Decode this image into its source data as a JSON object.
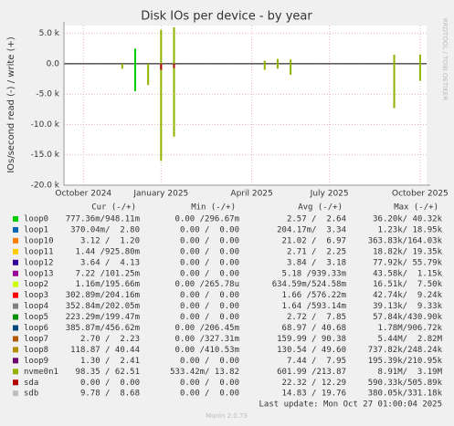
{
  "chart_data": {
    "type": "bar",
    "title": "Disk IOs per device - by year",
    "y_label": "IOs/second read (-) / write (+)",
    "side_label": "RRDTOOL / TOBI OETIKER",
    "ylim": [
      -20000,
      6300
    ],
    "yticks": [
      {
        "value": 5000,
        "label": "5.0 k"
      },
      {
        "value": 0,
        "label": "0.0"
      },
      {
        "value": -5000,
        "label": "-5.0 k"
      },
      {
        "value": -10000,
        "label": "-10.0 k"
      },
      {
        "value": -15000,
        "label": "-15.0 k"
      },
      {
        "value": -20000,
        "label": "-20.0 k"
      }
    ],
    "grid": true,
    "categories": [
      null,
      "October 2024",
      null,
      null,
      null,
      null,
      null,
      "January 2025",
      null,
      null,
      null,
      null,
      null,
      null,
      "April 2025",
      null,
      null,
      null,
      null,
      null,
      "July 2025",
      null,
      null,
      null,
      null,
      null,
      null,
      "October 2025"
    ],
    "stat_headers": [
      "Cur (-/+)",
      "Min (-/+)",
      "Avg (-/+)",
      "Max (-/+)"
    ],
    "series": [
      {
        "name": "loop0",
        "color": "#00cc00",
        "stats": [
          "777.36m/948.11m",
          "0.00 /296.67m",
          "2.57 /  2.64",
          "36.20k/ 40.32k"
        ],
        "values": [
          0,
          0,
          0,
          0,
          0,
          2500,
          0,
          0,
          0,
          0,
          0,
          0,
          0,
          0,
          0,
          0,
          0,
          0,
          0,
          0,
          0,
          0,
          0,
          0,
          0,
          0,
          0,
          0
        ],
        "read": [
          0,
          0,
          0,
          0,
          0,
          -4500,
          0,
          0,
          0,
          0,
          0,
          0,
          0,
          0,
          0,
          0,
          0,
          0,
          0,
          0,
          0,
          0,
          0,
          0,
          0,
          0,
          0,
          0
        ]
      },
      {
        "name": "loop1",
        "color": "#0066b3",
        "stats": [
          "370.04m/  2.80",
          "0.00 /  0.00",
          "204.17m/  3.34",
          "1.23k/ 18.95k"
        ]
      },
      {
        "name": "loop10",
        "color": "#ff8000",
        "stats": [
          "3.12 /  1.20",
          "0.00 /  0.00",
          "21.02 /  6.97",
          "363.83k/164.03k"
        ]
      },
      {
        "name": "loop11",
        "color": "#ffcc00",
        "stats": [
          "1.44 /925.80m",
          "0.00 /  0.00",
          "2.71 /  2.25",
          "18.82k/ 19.35k"
        ]
      },
      {
        "name": "loop12",
        "color": "#330099",
        "stats": [
          "3.64 /  4.13",
          "0.00 /  0.00",
          "3.84 /  3.18",
          "77.92k/ 55.79k"
        ]
      },
      {
        "name": "loop13",
        "color": "#990099",
        "stats": [
          "7.22 /101.25m",
          "0.00 /  0.00",
          "5.18 /939.33m",
          "43.58k/  1.15k"
        ]
      },
      {
        "name": "loop2",
        "color": "#ccff00",
        "stats": [
          "1.16m/195.66m",
          "0.00 /265.78u",
          "634.59m/524.58m",
          "16.51k/  7.50k"
        ]
      },
      {
        "name": "loop3",
        "color": "#ff0000",
        "stats": [
          "302.89m/204.16m",
          "0.00 /  0.00",
          "1.66 /576.22m",
          "42.74k/  9.24k"
        ]
      },
      {
        "name": "loop4",
        "color": "#808080",
        "stats": [
          "352.84m/202.05m",
          "0.00 /  0.00",
          "1.64 /593.14m",
          "39.13k/  9.33k"
        ]
      },
      {
        "name": "loop5",
        "color": "#008f00",
        "stats": [
          "223.29m/199.47m",
          "0.00 /  0.00",
          "2.72 /  7.85",
          "57.84k/430.90k"
        ]
      },
      {
        "name": "loop6",
        "color": "#00487d",
        "stats": [
          "385.87m/456.62m",
          "0.00 /206.45m",
          "68.97 / 40.68",
          "1.78M/906.72k"
        ]
      },
      {
        "name": "loop7",
        "color": "#b35a00",
        "stats": [
          "2.70 /  2.23",
          "0.00 /327.31m",
          "159.99 / 90.38",
          "5.44M/  2.82M"
        ]
      },
      {
        "name": "loop8",
        "color": "#b38f00",
        "stats": [
          "118.87 / 40.44",
          "0.00 /410.53m",
          "130.54 / 49.60",
          "737.82k/248.24k"
        ]
      },
      {
        "name": "loop9",
        "color": "#6b006b",
        "stats": [
          "1.30 /  2.41",
          "0.00 /  0.00",
          "7.44 /  7.95",
          "195.39k/210.95k"
        ]
      },
      {
        "name": "nvme0n1",
        "color": "#8fb300",
        "stats": [
          "98.35 / 62.51",
          "533.42m/ 13.82",
          "601.99 /213.87",
          "8.91M/  3.19M"
        ],
        "values": [
          0,
          0,
          0,
          0,
          0,
          0,
          0,
          5600,
          6000,
          0,
          0,
          0,
          0,
          0,
          0,
          500,
          800,
          700,
          0,
          0,
          0,
          0,
          0,
          0,
          0,
          1500,
          0,
          1500
        ],
        "read": [
          0,
          0,
          0,
          0,
          -800,
          0,
          -3500,
          -16000,
          -12000,
          0,
          0,
          0,
          0,
          0,
          0,
          -1000,
          -800,
          -1800,
          0,
          0,
          0,
          0,
          0,
          0,
          0,
          -7300,
          0,
          -2800
        ]
      },
      {
        "name": "sda",
        "color": "#b30000",
        "stats": [
          "0.00 /  0.00",
          "0.00 /  0.00",
          "22.32 / 12.29",
          "590.33k/505.89k"
        ],
        "values": [
          0,
          0,
          0,
          0,
          0,
          0,
          0,
          0,
          0,
          0,
          0,
          0,
          0,
          0,
          0,
          0,
          0,
          0,
          0,
          0,
          0,
          0,
          0,
          0,
          0,
          0,
          0,
          0
        ],
        "read": [
          0,
          0,
          0,
          0,
          0,
          0,
          0,
          -1000,
          -700,
          0,
          0,
          0,
          0,
          0,
          0,
          0,
          0,
          0,
          0,
          0,
          0,
          0,
          0,
          0,
          0,
          0,
          0,
          0
        ]
      },
      {
        "name": "sdb",
        "color": "#bebebe",
        "stats": [
          "9.78 /  8.68",
          "0.00 /  0.00",
          "14.83 / 19.76",
          "380.05k/331.18k"
        ]
      }
    ],
    "last_update": "Last update: Mon Oct 27 01:00:04 2025",
    "footer": "Munin 2.0.73"
  }
}
